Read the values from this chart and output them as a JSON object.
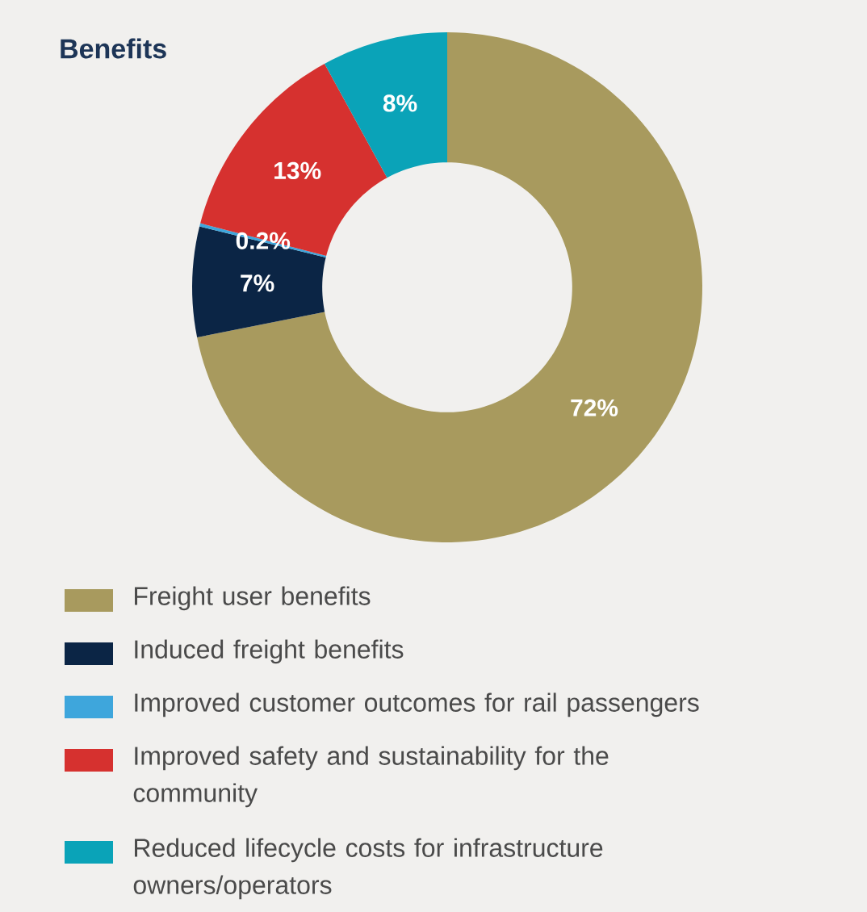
{
  "chart_data": {
    "type": "donut",
    "title": "Benefits",
    "categories": [
      "Freight user benefits",
      "Induced freight benefits",
      "Improved customer outcomes for rail passengers",
      "Improved safety and sustainability for the community",
      "Reduced lifecycle costs for infrastructure owners/operators"
    ],
    "values": [
      72,
      7,
      0.2,
      13,
      8
    ],
    "value_labels": [
      "72%",
      "7%",
      "0.2%",
      "13%",
      "8%"
    ],
    "colors": [
      "#a89a5e",
      "#0b2545",
      "#3ea6dc",
      "#d6312f",
      "#0aa3b8"
    ],
    "legend": "bottom"
  }
}
